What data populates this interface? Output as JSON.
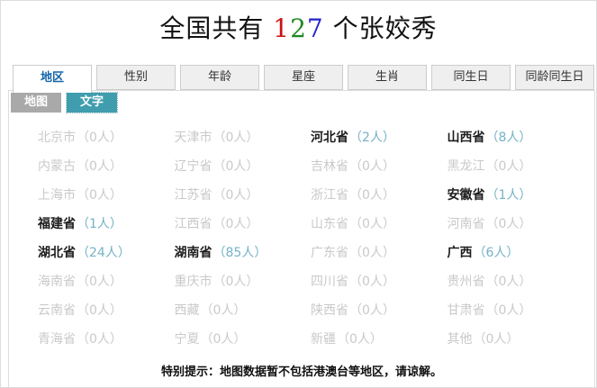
{
  "title": {
    "prefix": "全国共有 ",
    "digits": [
      {
        "char": "1",
        "color": "#cc1111"
      },
      {
        "char": "2",
        "color": "#1e8a1e"
      },
      {
        "char": "7",
        "color": "#2323cc"
      }
    ],
    "suffix": " 个张姣秀"
  },
  "tabs": [
    {
      "key": "region",
      "label": "地区",
      "active": true
    },
    {
      "key": "gender",
      "label": "性别",
      "active": false
    },
    {
      "key": "age",
      "label": "年龄",
      "active": false
    },
    {
      "key": "constellation",
      "label": "星座",
      "active": false
    },
    {
      "key": "zodiac",
      "label": "生肖",
      "active": false
    },
    {
      "key": "same-birthday",
      "label": "同生日",
      "active": false
    },
    {
      "key": "same-age-birthday",
      "label": "同龄同生日",
      "active": false
    }
  ],
  "subtabs": [
    {
      "key": "map",
      "label": "地图",
      "active": false
    },
    {
      "key": "text",
      "label": "文字",
      "active": true
    }
  ],
  "unit": "人",
  "paren_open": "（",
  "paren_close": "）",
  "provinces": [
    {
      "name": "北京市",
      "count": 0
    },
    {
      "name": "天津市",
      "count": 0
    },
    {
      "name": "河北省",
      "count": 2
    },
    {
      "name": "山西省",
      "count": 8
    },
    {
      "name": "内蒙古",
      "count": 0
    },
    {
      "name": "辽宁省",
      "count": 0
    },
    {
      "name": "吉林省",
      "count": 0
    },
    {
      "name": "黑龙江",
      "count": 0
    },
    {
      "name": "上海市",
      "count": 0
    },
    {
      "name": "江苏省",
      "count": 0
    },
    {
      "name": "浙江省",
      "count": 0
    },
    {
      "name": "安徽省",
      "count": 1
    },
    {
      "name": "福建省",
      "count": 1
    },
    {
      "name": "江西省",
      "count": 0
    },
    {
      "name": "山东省",
      "count": 0
    },
    {
      "name": "河南省",
      "count": 0
    },
    {
      "name": "湖北省",
      "count": 24
    },
    {
      "name": "湖南省",
      "count": 85
    },
    {
      "name": "广东省",
      "count": 0
    },
    {
      "name": "广西",
      "count": 6
    },
    {
      "name": "海南省",
      "count": 0
    },
    {
      "name": "重庆市",
      "count": 0
    },
    {
      "name": "四川省",
      "count": 0
    },
    {
      "name": "贵州省",
      "count": 0
    },
    {
      "name": "云南省",
      "count": 0
    },
    {
      "name": "西藏",
      "count": 0
    },
    {
      "name": "陕西省",
      "count": 0
    },
    {
      "name": "甘肃省",
      "count": 0
    },
    {
      "name": "青海省",
      "count": 0
    },
    {
      "name": "宁夏",
      "count": 0
    },
    {
      "name": "新疆",
      "count": 0
    },
    {
      "name": "其他",
      "count": 0
    }
  ],
  "note": "特别提示：地图数据暂不包括港澳台等地区，请谅解。",
  "colors": {
    "active_tab_text": "#1464a8",
    "inactive_tab_bg": "#efefef",
    "tab_border": "#cccccc",
    "count_accent": "#74b2c6",
    "zero_gray": "#c9c9c9",
    "map_button_bg": "#a9a9a9",
    "text_button_bg": "#3f9dae"
  }
}
